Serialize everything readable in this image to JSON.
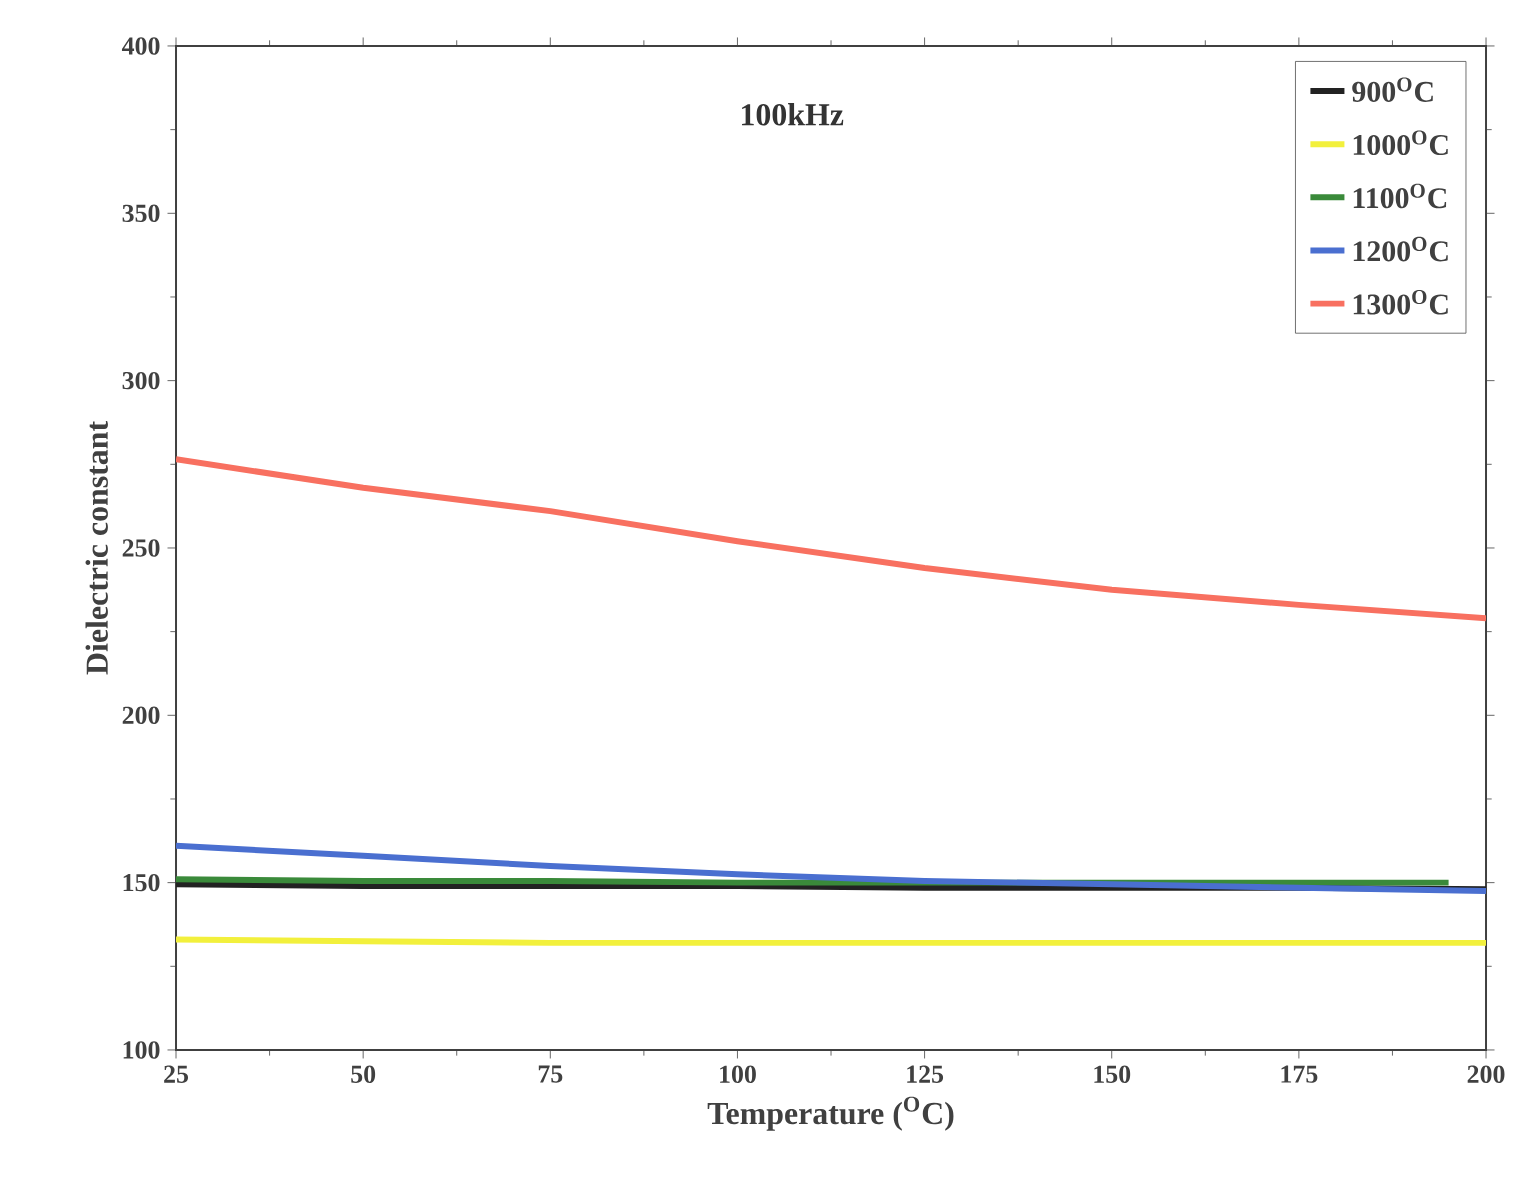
{
  "chart_data": {
    "type": "line",
    "title": "100kHz",
    "xlabel": "Temperature ($^{O}$C)",
    "ylabel": "Dielectric constant",
    "xlim": [
      25,
      200
    ],
    "ylim": [
      100,
      400
    ],
    "xticks": [
      25,
      50,
      75,
      100,
      125,
      150,
      175,
      200
    ],
    "yticks": [
      100,
      150,
      200,
      250,
      300,
      350,
      400
    ],
    "legend": "top right",
    "grid": false,
    "marker": "none",
    "line_style": "solid",
    "series": [
      {
        "name": "900$^{O}$C",
        "color": "#222222",
        "x": [
          25,
          50,
          75,
          100,
          125,
          150,
          175,
          200
        ],
        "values": [
          149.5,
          149,
          149,
          149,
          148.5,
          148.5,
          148.5,
          148
        ]
      },
      {
        "name": "1000$^{O}$C",
        "color": "#f2f03c",
        "x": [
          25,
          50,
          75,
          100,
          125,
          150,
          175,
          200
        ],
        "values": [
          133,
          132.5,
          132,
          132,
          132,
          132,
          132,
          132
        ]
      },
      {
        "name": "1100$^{O}$C",
        "color": "#3a8a3a",
        "x": [
          25,
          50,
          75,
          100,
          125,
          150,
          175,
          195
        ],
        "values": [
          151,
          150.5,
          150.5,
          150,
          150,
          150,
          150,
          150
        ]
      },
      {
        "name": "1200$^{O}$C",
        "color": "#4a6fd0",
        "x": [
          25,
          50,
          75,
          100,
          125,
          150,
          175,
          200
        ],
        "values": [
          161,
          158,
          155,
          152.5,
          150.5,
          149.5,
          148.5,
          147.5
        ]
      },
      {
        "name": "1300$^{O}$C",
        "color": "#f87060",
        "x": [
          25,
          50,
          75,
          100,
          125,
          150,
          175,
          200
        ],
        "values": [
          276.5,
          268,
          261,
          252,
          244,
          237.5,
          233,
          229
        ]
      }
    ]
  }
}
